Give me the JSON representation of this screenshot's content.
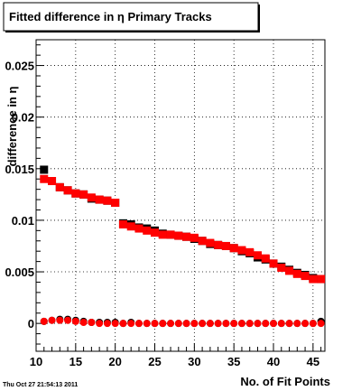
{
  "timestamp": "Thu Oct 27 21:54:13 2011",
  "chart_data": {
    "type": "scatter",
    "title": "Fitted difference in  η Primary Tracks",
    "xlabel": "No. of Fit Points",
    "ylabel": "difference in η",
    "xlim": [
      10,
      46.5
    ],
    "ylim": [
      -0.0027,
      0.0275
    ],
    "x_ticks": [
      {
        "value": 10,
        "label": "10"
      },
      {
        "value": 15,
        "label": "15"
      },
      {
        "value": 20,
        "label": "20"
      },
      {
        "value": 25,
        "label": "25"
      },
      {
        "value": 30,
        "label": "30"
      },
      {
        "value": 35,
        "label": "35"
      },
      {
        "value": 40,
        "label": "40"
      },
      {
        "value": 45,
        "label": "45"
      }
    ],
    "y_ticks": [
      {
        "value": 0,
        "label": "0"
      },
      {
        "value": 0.005,
        "label": "0.005"
      },
      {
        "value": 0.01,
        "label": "0.01"
      },
      {
        "value": 0.015,
        "label": "0.015"
      },
      {
        "value": 0.02,
        "label": "0.02"
      },
      {
        "value": 0.025,
        "label": "0.025"
      }
    ],
    "grid": true,
    "x": [
      11,
      12,
      13,
      14,
      15,
      16,
      17,
      18,
      19,
      20,
      21,
      22,
      23,
      24,
      25,
      26,
      27,
      28,
      29,
      30,
      31,
      32,
      33,
      34,
      35,
      36,
      37,
      38,
      39,
      40,
      41,
      42,
      43,
      44,
      45,
      46
    ],
    "series": [
      {
        "color": "#000000",
        "marker": "square",
        "values": [
          0.0149,
          0.0138,
          0.0132,
          0.0129,
          0.0126,
          0.0125,
          0.0121,
          0.012,
          0.0119,
          0.0117,
          0.0097,
          0.0096,
          0.0093,
          0.0092,
          0.009,
          0.0087,
          0.0086,
          0.0085,
          0.0084,
          0.0082,
          0.008,
          0.0077,
          0.0076,
          0.0075,
          0.0073,
          0.007,
          0.0068,
          0.0064,
          0.0062,
          0.0058,
          0.0055,
          0.0052,
          0.0049,
          0.0047,
          0.0044,
          0.0043
        ]
      },
      {
        "color": "#ff0000",
        "marker": "square",
        "values": [
          0.014,
          0.0138,
          0.0132,
          0.0129,
          0.0126,
          0.0125,
          0.0122,
          0.012,
          0.0119,
          0.0117,
          0.0096,
          0.0094,
          0.0092,
          0.009,
          0.0088,
          0.0086,
          0.0086,
          0.0085,
          0.0084,
          0.0083,
          0.008,
          0.0078,
          0.0076,
          0.0075,
          0.0073,
          0.0071,
          0.0069,
          0.0066,
          0.0063,
          0.0058,
          0.0054,
          0.0051,
          0.0048,
          0.0046,
          0.0043,
          0.0043
        ]
      },
      {
        "color": "#000000",
        "marker": "circle",
        "values": [
          0.0002,
          0.0003,
          0.0004,
          0.0004,
          0.0003,
          0.0002,
          0.0001,
          0.0001,
          0.0001,
          0.0001,
          0.0,
          0.0001,
          0.0,
          0.0,
          0.0,
          0.0,
          0.0,
          0.0,
          0.0,
          0.0,
          0.0,
          0.0,
          0.0,
          0.0,
          0.0,
          0.0,
          0.0,
          0.0,
          0.0,
          0.0,
          0.0,
          0.0,
          0.0,
          0.0,
          0.0,
          0.0002
        ]
      },
      {
        "color": "#ff0000",
        "marker": "circle",
        "values": [
          0.0002,
          0.0003,
          0.0003,
          0.0003,
          0.0002,
          0.0001,
          0.0001,
          0.0,
          0.0,
          0.0,
          0.0,
          0.0,
          0.0,
          0.0,
          0.0,
          0.0,
          0.0,
          0.0,
          0.0,
          0.0,
          0.0,
          0.0,
          0.0,
          0.0,
          0.0,
          0.0,
          0.0,
          0.0,
          0.0,
          0.0,
          0.0,
          0.0,
          0.0,
          0.0,
          0.0,
          0.0
        ]
      }
    ]
  }
}
